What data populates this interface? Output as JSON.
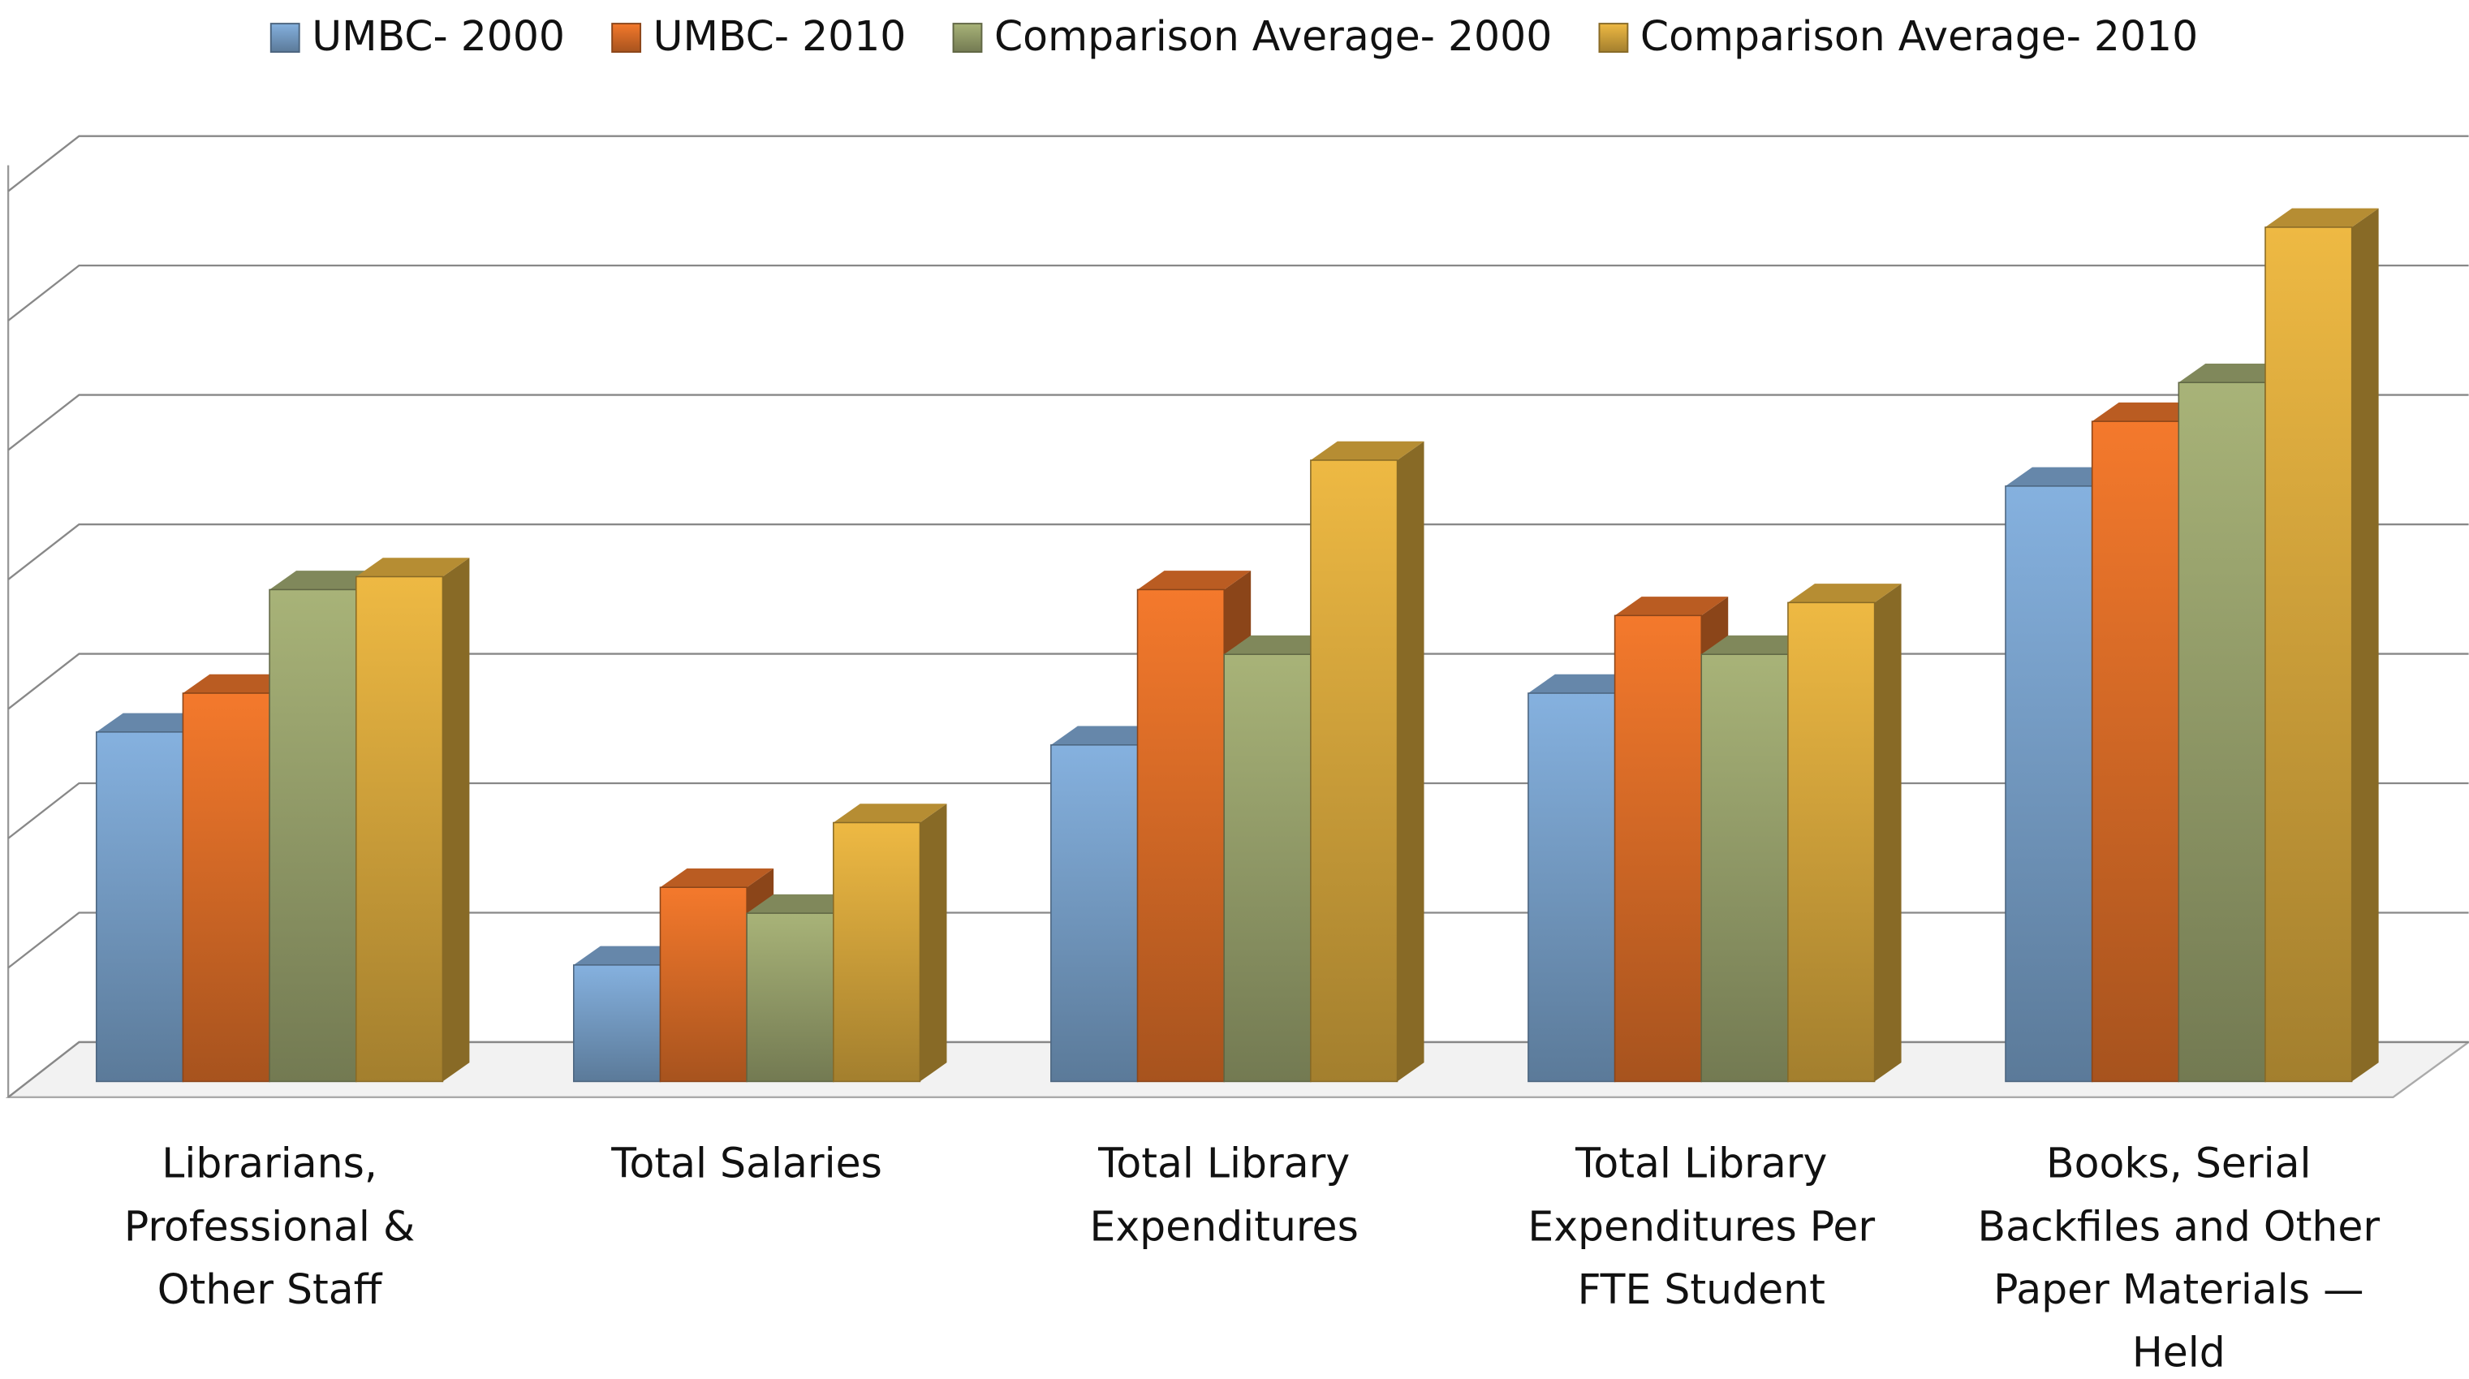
{
  "chart_data": {
    "type": "bar3d",
    "categories": [
      "Librarians, Professional & Other Staff",
      "Total Salaries",
      "Total Library Expenditures",
      "Total Library Expenditures Per FTE Student",
      "Books, Serial Backfiles and Other Paper Materials — Held"
    ],
    "series": [
      {
        "name": "UMBC- 2000",
        "color": "#7fa9d4",
        "values": [
          2.7,
          0.9,
          2.6,
          3.0,
          4.6
        ]
      },
      {
        "name": "UMBC- 2010",
        "color": "#e8732a",
        "values": [
          3.0,
          1.5,
          3.8,
          3.6,
          5.1
        ]
      },
      {
        "name": "Comparison Average- 2000",
        "color": "#a0aa72",
        "values": [
          3.8,
          1.3,
          3.3,
          3.3,
          5.4
        ]
      },
      {
        "name": "Comparison Average- 2010",
        "color": "#e3b040",
        "values": [
          3.9,
          2.0,
          4.8,
          3.7,
          6.6
        ]
      }
    ],
    "ylim": [
      0,
      7.2
    ],
    "gridlines": [
      0,
      1,
      2,
      3,
      4,
      5,
      6,
      7
    ],
    "legend": "top"
  }
}
